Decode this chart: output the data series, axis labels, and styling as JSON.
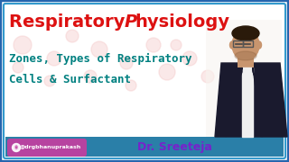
{
  "bg_color": "#ffffff",
  "border_outer_color": "#2565ae",
  "border_inner_color": "#3399cc",
  "title_text1": "Respiratory ",
  "title_text2": "P",
  "title_text3": "hysiology",
  "title_color": "#dd1111",
  "subtitle_line1": "Zones, Types of Respiratory",
  "subtitle_line2": "Cells & Surfactant",
  "subtitle_color": "#008080",
  "footer_bg": "#2a7fa8",
  "instagram_text": "@drgbhanuprakash",
  "instagram_bg": "#c040a0",
  "name_text": "Dr. Sreeteja",
  "name_color": "#7722cc",
  "person_skin": "#c8956e",
  "person_jacket": "#1a1a2e",
  "person_shirt": "#f0f0f0",
  "person_hair": "#2a1a0a",
  "watermark_color": "#f5cccc",
  "figsize": [
    3.2,
    1.8
  ],
  "dpi": 100
}
